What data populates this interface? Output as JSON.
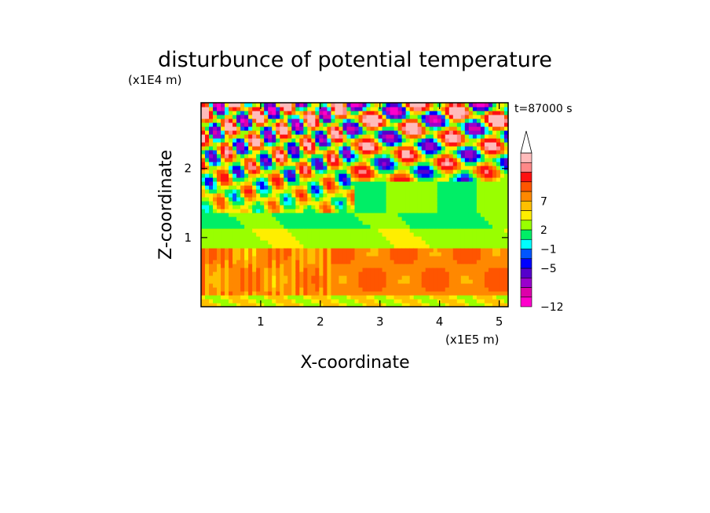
{
  "chart_data": {
    "type": "heatmap",
    "title": "disturbunce of potential temperature",
    "xlabel": "X-coordinate",
    "ylabel": "Z-coordinate",
    "x_unit": "(x1E5 m)",
    "y_unit": "(x1E4 m)",
    "time_label": "t=87000 s",
    "xlim": [
      0,
      5.15
    ],
    "ylim": [
      0,
      2.95
    ],
    "x_ticks": [
      1,
      2,
      3,
      4,
      5
    ],
    "y_ticks": [
      1,
      2
    ],
    "colorbar": {
      "labels": [
        "7",
        "2",
        "−1",
        "−5",
        "−12"
      ],
      "label_levels": [
        11,
        8,
        6,
        4,
        0
      ],
      "colors": [
        "#ff00cc",
        "#dd00aa",
        "#9900cc",
        "#5500cc",
        "#0000ff",
        "#0055ff",
        "#00ffff",
        "#00ee66",
        "#99ff00",
        "#ffee00",
        "#ffc000",
        "#ff8800",
        "#ff5500",
        "#ff1111",
        "#ff8888",
        "#ffbbbb",
        "#ffffff"
      ]
    },
    "field_regions": [
      {
        "z_range": [
          0.0,
          0.15
        ],
        "description": "mixed green/yellow at surface",
        "approx_value": 0.5
      },
      {
        "z_range": [
          0.15,
          0.85
        ],
        "description": "warm yellow-orange band",
        "approx_value": 2.5
      },
      {
        "z_range": [
          0.85,
          1.35
        ],
        "description": "neutral green band",
        "approx_value": -0.5
      },
      {
        "z_range": [
          1.35,
          2.95
        ],
        "description": "alternating warm/cold wave pattern (orange/red vs blue)",
        "approx_value": 0
      }
    ]
  }
}
